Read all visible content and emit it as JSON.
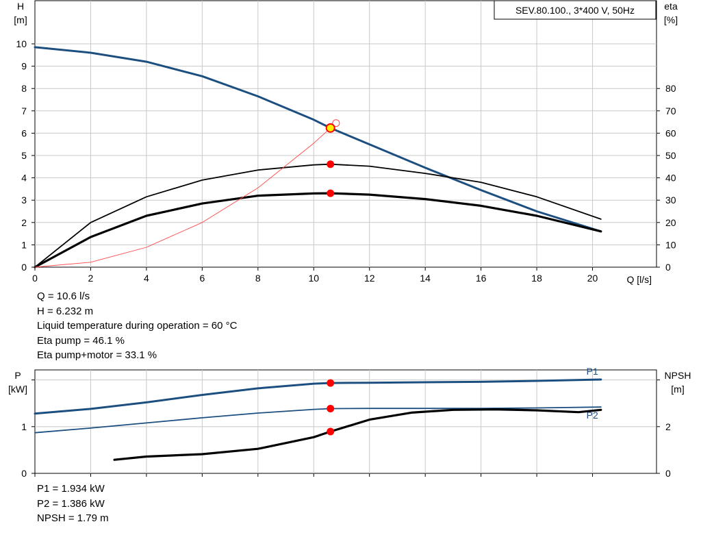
{
  "info_top": [
    "Q = 10.6 l/s",
    "H = 6.232 m",
    "Liquid temperature during operation = 60 °C",
    "Eta pump = 46.1 %",
    "Eta pump+motor = 33.1 %"
  ],
  "info_bottom": [
    "P1 = 1.934 kW",
    "P2 = 1.386 kW",
    "NPSH = 1.79 m"
  ],
  "colors": {
    "head_curve": "#1c4e80",
    "p1_curve": "#1c4e80",
    "p2_curve": "#1c4e80",
    "eta_curves": "#000000",
    "npsh_curve": "#000000",
    "system_curve": "#ff4444",
    "duty_point": "#ff0000",
    "duty_point_head": "#ffee00",
    "grid": "#c8c8c8"
  },
  "chart_data": [
    {
      "type": "line",
      "name": "head-efficiency",
      "legend_box": "SEV.80.100., 3*400 V, 50Hz",
      "left_axis": {
        "label_line1": "H",
        "label_line2": "[m]",
        "range": [
          0,
          10
        ],
        "ticks": [
          "0",
          "1",
          "2",
          "3",
          "4",
          "5",
          "6",
          "7",
          "8",
          "9",
          "10"
        ]
      },
      "right_axis": {
        "label_line1": "eta",
        "label_line2": "[%]",
        "range": [
          0,
          100
        ],
        "ticks": [
          "0",
          "10",
          "20",
          "30",
          "40",
          "50",
          "60",
          "70",
          "80"
        ]
      },
      "x_axis": {
        "label": "Q [l/s]",
        "range": [
          0,
          22
        ],
        "ticks": [
          "0",
          "2",
          "4",
          "6",
          "8",
          "10",
          "12",
          "14",
          "16",
          "18",
          "20"
        ]
      },
      "grid": true,
      "series": [
        {
          "key": "H",
          "axis": "left",
          "x": [
            0,
            2,
            4,
            6,
            8,
            10,
            10.6,
            12,
            14,
            16,
            18,
            20.3
          ],
          "values": [
            9.85,
            9.6,
            9.2,
            8.55,
            7.65,
            6.6,
            6.23,
            5.5,
            4.45,
            3.45,
            2.5,
            1.6
          ]
        },
        {
          "key": "eta_pump",
          "axis": "right",
          "x": [
            0,
            2,
            4,
            6,
            8,
            10,
            10.6,
            12,
            14,
            16,
            18,
            20.3
          ],
          "values": [
            0,
            20,
            31.5,
            39,
            43.5,
            45.8,
            46.1,
            45.2,
            42,
            38,
            31.5,
            21.5
          ]
        },
        {
          "key": "eta_pump_motor",
          "axis": "right",
          "x": [
            0,
            2,
            4,
            6,
            8,
            10,
            10.6,
            12,
            14,
            16,
            18,
            20.3
          ],
          "values": [
            0,
            13.5,
            23,
            28.5,
            32,
            33,
            33.1,
            32.5,
            30.5,
            27.5,
            23,
            16
          ]
        },
        {
          "key": "system",
          "axis": "left",
          "x": [
            0,
            2,
            4,
            6,
            8,
            10,
            10.6,
            10.8
          ],
          "values": [
            0,
            0.22,
            0.89,
            2.0,
            3.55,
            5.55,
            6.23,
            6.45
          ]
        }
      ],
      "duty_points": [
        {
          "key": "H",
          "axis": "left",
          "x": 10.6,
          "y": 6.232
        },
        {
          "key": "eta_pump",
          "axis": "right",
          "x": 10.6,
          "y": 46.1
        },
        {
          "key": "eta_pump_motor",
          "axis": "right",
          "x": 10.6,
          "y": 33.1
        }
      ],
      "open_point": {
        "axis": "left",
        "x": 10.8,
        "y": 6.45
      }
    },
    {
      "type": "line",
      "name": "power-npsh",
      "left_axis": {
        "label_line1": "P",
        "label_line2": "[kW]",
        "range": [
          0,
          2.2
        ],
        "ticks": [
          "0",
          "1"
        ]
      },
      "right_axis": {
        "label_line1": "NPSH",
        "label_line2": "[m]",
        "range": [
          0,
          4.4
        ],
        "ticks": [
          "0",
          "2"
        ]
      },
      "x_axis": {
        "range": [
          0,
          22
        ]
      },
      "grid": true,
      "series": [
        {
          "key": "P1",
          "name": "P1",
          "axis": "left",
          "x": [
            0,
            2,
            4,
            6,
            8,
            10,
            10.6,
            12,
            14,
            16,
            18,
            20.3
          ],
          "values": [
            1.28,
            1.38,
            1.52,
            1.68,
            1.82,
            1.92,
            1.934,
            1.94,
            1.95,
            1.96,
            1.98,
            2.01
          ]
        },
        {
          "key": "P2",
          "name": "P2",
          "axis": "left",
          "x": [
            0,
            2,
            4,
            6,
            8,
            10,
            10.6,
            12,
            14,
            16,
            18,
            20.3
          ],
          "values": [
            0.87,
            0.97,
            1.08,
            1.19,
            1.29,
            1.37,
            1.386,
            1.39,
            1.39,
            1.39,
            1.4,
            1.42
          ]
        },
        {
          "key": "NPSH",
          "axis": "right",
          "x": [
            2.85,
            4,
            6,
            8,
            10,
            10.6,
            12,
            13.5,
            15,
            16.5,
            18,
            19.5,
            20.3
          ],
          "values": [
            0.58,
            0.72,
            0.82,
            1.05,
            1.55,
            1.79,
            2.3,
            2.6,
            2.72,
            2.74,
            2.7,
            2.62,
            2.72
          ]
        }
      ],
      "duty_points": [
        {
          "key": "P1",
          "axis": "left",
          "x": 10.6,
          "y": 1.934
        },
        {
          "key": "P2",
          "axis": "left",
          "x": 10.6,
          "y": 1.386
        },
        {
          "key": "NPSH",
          "axis": "right",
          "x": 10.6,
          "y": 1.79
        }
      ]
    }
  ]
}
